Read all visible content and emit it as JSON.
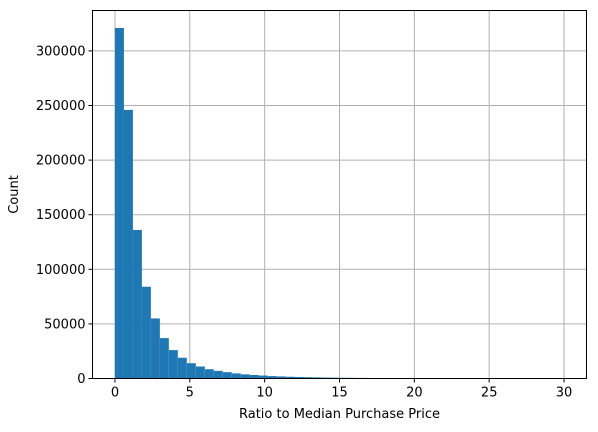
{
  "chart_data": {
    "type": "bar",
    "subtype": "histogram",
    "title": "",
    "xlabel": "Ratio to Median Purchase Price",
    "ylabel": "Count",
    "xlim": [
      -1.5,
      31.5
    ],
    "ylim": [
      0,
      337000
    ],
    "xticks": [
      0,
      5,
      10,
      15,
      20,
      25,
      30
    ],
    "xtick_labels": [
      "0",
      "5",
      "10",
      "15",
      "20",
      "25",
      "30"
    ],
    "yticks": [
      0,
      50000,
      100000,
      150000,
      200000,
      250000,
      300000
    ],
    "ytick_labels": [
      "0",
      "50000",
      "100000",
      "150000",
      "200000",
      "250000",
      "300000"
    ],
    "grid": true,
    "bar_color": "#1f77b4",
    "bin_edges": [
      0,
      0.6,
      1.2,
      1.8,
      2.4,
      3.0,
      3.6,
      4.2,
      4.8,
      5.4,
      6.0,
      6.6,
      7.2,
      7.8,
      8.4,
      9.0,
      9.6,
      10.2,
      10.8,
      11.4,
      12.0,
      12.6,
      13.2,
      13.8,
      14.4,
      15.0,
      15.6,
      16.2,
      16.8,
      17.4,
      18.0,
      18.6,
      19.2,
      19.8,
      20.4,
      21.0,
      21.6,
      22.2,
      22.8,
      23.4,
      24.0,
      24.6,
      25.2,
      25.8,
      26.4,
      27.0,
      27.6,
      28.2,
      28.8,
      29.4,
      30.0
    ],
    "counts": [
      321000,
      246000,
      136000,
      84000,
      55000,
      37000,
      26000,
      19000,
      14000,
      11000,
      8500,
      7000,
      5800,
      4700,
      3800,
      3200,
      2700,
      2200,
      1900,
      1600,
      1400,
      1200,
      1000,
      850,
      750,
      650,
      580,
      520,
      470,
      420,
      380,
      350,
      320,
      300,
      280,
      260,
      120,
      90,
      70,
      60,
      50,
      40,
      35,
      30,
      25,
      20,
      18,
      15,
      12,
      10
    ]
  }
}
